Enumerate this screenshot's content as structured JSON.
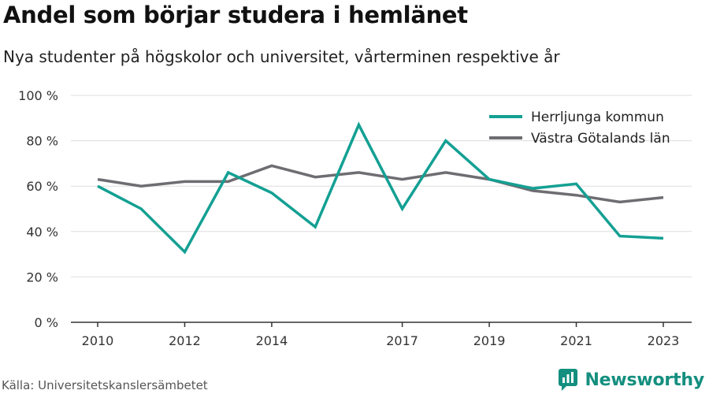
{
  "title": "Andel som börjar studera i hemlänet",
  "subtitle": "Nya studenter på högskolor och universitet, vårterminen respektive år",
  "source": "Källa: Universitetskanslersämbetet",
  "brand": "Newsworthy",
  "colors": {
    "herrljunga": "#13a093",
    "vastra_gotaland": "#6e6d72",
    "grid": "#dddddd",
    "axis": "#333333",
    "brand": "#148f7f"
  },
  "chart_data": {
    "type": "line",
    "title": "Andel som börjar studera i hemlänet",
    "x": [
      2010,
      2011,
      2012,
      2013,
      2014,
      2015,
      2016,
      2017,
      2018,
      2019,
      2020,
      2021,
      2022,
      2023
    ],
    "x_tick_labels": [
      "2010",
      "2012",
      "2014",
      "2017",
      "2019",
      "2021",
      "2023"
    ],
    "y_tick_labels": [
      "0 %",
      "20 %",
      "40 %",
      "60 %",
      "80 %",
      "100 %"
    ],
    "ylim": [
      0,
      100
    ],
    "grid": true,
    "legend": "top-right",
    "series": [
      {
        "name": "Herrljunga kommun",
        "values": [
          60,
          50,
          31,
          66,
          57,
          42,
          87,
          50,
          80,
          63,
          59,
          61,
          38,
          37
        ]
      },
      {
        "name": "Västra Götalands län",
        "values": [
          63,
          60,
          62,
          62,
          69,
          64,
          66,
          63,
          66,
          63,
          58,
          56,
          53,
          55
        ]
      }
    ]
  }
}
